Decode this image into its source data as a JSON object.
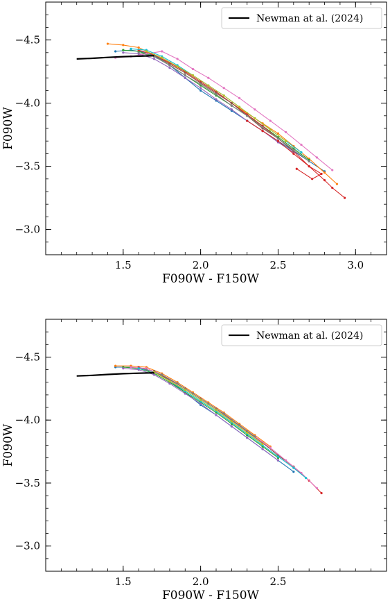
{
  "chart_data": [
    {
      "type": "line",
      "xlabel": "F090W - F150W",
      "ylabel": "F090W",
      "xlim": [
        1.0,
        3.2
      ],
      "ylim": [
        -2.8,
        -4.8
      ],
      "y_inverted": true,
      "xticks": [
        1.5,
        2.0,
        2.5,
        3.0
      ],
      "xtick_labels": [
        "1.5",
        "2.0",
        "2.5",
        "3.0"
      ],
      "yticks": [
        -4.5,
        -4.0,
        -3.5,
        -3.0
      ],
      "ytick_labels": [
        "-4.5",
        "-4.0",
        "-3.5",
        "-3.0"
      ],
      "legend": {
        "position": "top-right",
        "entries": [
          {
            "label": "Newman at al. (2024)",
            "color": "#000000"
          }
        ]
      },
      "reference_line": {
        "name": "Newman at al. (2024)",
        "color": "#000000",
        "x": [
          1.2,
          1.3,
          1.4,
          1.5,
          1.6,
          1.7
        ],
        "y": [
          -4.35,
          -4.355,
          -4.362,
          -4.368,
          -4.372,
          -4.375
        ]
      },
      "series": [
        {
          "color": "#1f77b4",
          "x": [
            1.45,
            1.55,
            1.65,
            1.72,
            1.8,
            1.9,
            2.0,
            2.1,
            2.2,
            2.3,
            2.4,
            2.5,
            2.6,
            2.7,
            2.8
          ],
          "y": [
            -4.41,
            -4.42,
            -4.4,
            -4.36,
            -4.3,
            -4.2,
            -4.1,
            -4.02,
            -3.94,
            -3.86,
            -3.78,
            -3.7,
            -3.62,
            -3.54,
            -3.46
          ]
        },
        {
          "color": "#ff7f0e",
          "x": [
            1.4,
            1.5,
            1.6,
            1.7,
            1.8,
            1.9,
            2.0,
            2.1,
            2.2,
            2.3,
            2.4,
            2.5,
            2.6,
            2.7,
            2.8,
            2.88
          ],
          "y": [
            -4.47,
            -4.46,
            -4.44,
            -4.38,
            -4.31,
            -4.24,
            -4.16,
            -4.08,
            -4.0,
            -3.92,
            -3.84,
            -3.76,
            -3.66,
            -3.56,
            -3.45,
            -3.36
          ]
        },
        {
          "color": "#2ca02c",
          "x": [
            1.5,
            1.6,
            1.7,
            1.8,
            1.9,
            2.0,
            2.1,
            2.2,
            2.3,
            2.4,
            2.5,
            2.6,
            2.7
          ],
          "y": [
            -4.42,
            -4.41,
            -4.37,
            -4.3,
            -4.22,
            -4.14,
            -4.06,
            -3.98,
            -3.9,
            -3.82,
            -3.73,
            -3.64,
            -3.55
          ]
        },
        {
          "color": "#d62728",
          "x": [
            1.6,
            1.7,
            1.8,
            1.9,
            2.0,
            2.1,
            2.2,
            2.3,
            2.4,
            2.5,
            2.6,
            2.7,
            2.8,
            2.85,
            2.93
          ],
          "y": [
            -4.42,
            -4.38,
            -4.32,
            -4.25,
            -4.17,
            -4.09,
            -4.0,
            -3.91,
            -3.82,
            -3.72,
            -3.62,
            -3.5,
            -3.39,
            -3.33,
            -3.25
          ]
        },
        {
          "color": "#9467bd",
          "x": [
            1.5,
            1.6,
            1.7,
            1.8,
            1.9,
            2.0,
            2.1,
            2.2,
            2.3,
            2.4,
            2.5,
            2.6
          ],
          "y": [
            -4.4,
            -4.39,
            -4.35,
            -4.28,
            -4.2,
            -4.12,
            -4.03,
            -3.95,
            -3.86,
            -3.78,
            -3.69,
            -3.61
          ]
        },
        {
          "color": "#8c564b",
          "x": [
            1.7,
            1.8,
            1.9,
            2.0,
            2.1,
            2.2,
            2.3,
            2.4,
            2.5,
            2.6
          ],
          "y": [
            -4.38,
            -4.31,
            -4.24,
            -4.16,
            -4.08,
            -4.0,
            -3.9,
            -3.8,
            -3.72,
            -3.62
          ]
        },
        {
          "color": "#e377c2",
          "x": [
            1.45,
            1.55,
            1.65,
            1.75,
            1.85,
            1.95,
            2.05,
            2.15,
            2.25,
            2.35,
            2.45,
            2.55,
            2.65,
            2.75,
            2.85
          ],
          "y": [
            -4.36,
            -4.37,
            -4.39,
            -4.41,
            -4.35,
            -4.27,
            -4.2,
            -4.12,
            -4.04,
            -3.95,
            -3.86,
            -3.77,
            -3.67,
            -3.57,
            -3.47
          ]
        },
        {
          "color": "#17becf",
          "x": [
            1.55,
            1.65,
            1.75,
            1.85,
            1.95,
            2.05,
            2.15,
            2.25,
            2.35,
            2.45,
            2.55,
            2.65
          ],
          "y": [
            -4.43,
            -4.42,
            -4.37,
            -4.3,
            -4.22,
            -4.14,
            -4.06,
            -3.97,
            -3.88,
            -3.79,
            -3.7,
            -3.61
          ]
        },
        {
          "color": "#7f7f7f",
          "x": [
            1.6,
            1.7,
            1.8,
            1.9,
            2.0,
            2.1,
            2.2,
            2.3,
            2.4,
            2.5,
            2.6,
            2.7
          ],
          "y": [
            -4.4,
            -4.37,
            -4.3,
            -4.22,
            -4.15,
            -4.07,
            -3.98,
            -3.9,
            -3.81,
            -3.72,
            -3.63,
            -3.54
          ]
        },
        {
          "color": "#bcbd22",
          "x": [
            1.65,
            1.75,
            1.85,
            1.95,
            2.05,
            2.15,
            2.25,
            2.35,
            2.45,
            2.55
          ],
          "y": [
            -4.41,
            -4.36,
            -4.29,
            -4.22,
            -4.14,
            -4.06,
            -3.97,
            -3.88,
            -3.79,
            -3.7
          ]
        },
        {
          "color": "#d62728",
          "x": [
            2.3,
            2.4,
            2.5,
            2.6,
            2.7,
            2.78,
            2.72,
            2.62
          ],
          "y": [
            -3.86,
            -3.78,
            -3.7,
            -3.6,
            -3.5,
            -3.44,
            -3.4,
            -3.48
          ]
        }
      ]
    },
    {
      "type": "line",
      "xlabel": "F090W - F150W",
      "ylabel": "F090W",
      "xlim": [
        1.0,
        3.2
      ],
      "ylim": [
        -2.8,
        -4.8
      ],
      "y_inverted": true,
      "xticks": [
        1.5,
        2.0,
        2.5
      ],
      "xtick_labels": [
        "1.5",
        "2.0",
        "2.5"
      ],
      "yticks": [
        -4.5,
        -4.0,
        -3.5,
        -3.0
      ],
      "ytick_labels": [
        "-4.5",
        "-4.0",
        "-3.5",
        "-3.0"
      ],
      "legend": {
        "position": "top-right",
        "entries": [
          {
            "label": "Newman at al. (2024)",
            "color": "#000000"
          }
        ]
      },
      "reference_line": {
        "name": "Newman at al. (2024)",
        "color": "#000000",
        "x": [
          1.2,
          1.3,
          1.4,
          1.5,
          1.6,
          1.7
        ],
        "y": [
          -4.35,
          -4.355,
          -4.362,
          -4.368,
          -4.372,
          -4.375
        ]
      },
      "series": [
        {
          "color": "#1f77b4",
          "x": [
            1.45,
            1.55,
            1.65,
            1.72,
            1.8,
            1.9,
            2.0,
            2.1,
            2.2,
            2.3,
            2.4,
            2.5,
            2.6
          ],
          "y": [
            -4.42,
            -4.42,
            -4.4,
            -4.37,
            -4.31,
            -4.22,
            -4.12,
            -4.04,
            -3.95,
            -3.86,
            -3.77,
            -3.68,
            -3.59
          ]
        },
        {
          "color": "#ff7f0e",
          "x": [
            1.45,
            1.55,
            1.65,
            1.75,
            1.85,
            1.95,
            2.05,
            2.15,
            2.25,
            2.35,
            2.45
          ],
          "y": [
            -4.43,
            -4.43,
            -4.42,
            -4.37,
            -4.3,
            -4.22,
            -4.14,
            -4.06,
            -3.97,
            -3.88,
            -3.79
          ]
        },
        {
          "color": "#2ca02c",
          "x": [
            1.5,
            1.6,
            1.7,
            1.8,
            1.9,
            2.0,
            2.1,
            2.2,
            2.3,
            2.4,
            2.5
          ],
          "y": [
            -4.42,
            -4.41,
            -4.37,
            -4.3,
            -4.22,
            -4.14,
            -4.06,
            -3.97,
            -3.88,
            -3.79,
            -3.7
          ]
        },
        {
          "color": "#d62728",
          "x": [
            1.6,
            1.7,
            1.8,
            1.9,
            2.0,
            2.1,
            2.2,
            2.3,
            2.4,
            2.5,
            2.6,
            2.7,
            2.78
          ],
          "y": [
            -4.42,
            -4.38,
            -4.32,
            -4.25,
            -4.17,
            -4.09,
            -4.0,
            -3.91,
            -3.82,
            -3.72,
            -3.63,
            -3.52,
            -3.42
          ]
        },
        {
          "color": "#9467bd",
          "x": [
            1.5,
            1.6,
            1.7,
            1.8,
            1.9,
            2.0,
            2.1,
            2.2,
            2.3,
            2.4,
            2.5
          ],
          "y": [
            -4.41,
            -4.4,
            -4.36,
            -4.29,
            -4.21,
            -4.13,
            -4.04,
            -3.95,
            -3.86,
            -3.77,
            -3.68
          ]
        },
        {
          "color": "#8c564b",
          "x": [
            1.7,
            1.8,
            1.9,
            2.0,
            2.1,
            2.2,
            2.3,
            2.4,
            2.5,
            2.6
          ],
          "y": [
            -4.39,
            -4.32,
            -4.25,
            -4.17,
            -4.09,
            -4.0,
            -3.91,
            -3.82,
            -3.72,
            -3.63
          ]
        },
        {
          "color": "#e377c2",
          "x": [
            1.55,
            1.65,
            1.75,
            1.85,
            1.95,
            2.05,
            2.15,
            2.25,
            2.35,
            2.45,
            2.55,
            2.65,
            2.75
          ],
          "y": [
            -4.42,
            -4.41,
            -4.36,
            -4.29,
            -4.21,
            -4.13,
            -4.05,
            -3.96,
            -3.87,
            -3.78,
            -3.68,
            -3.58,
            -3.46
          ]
        },
        {
          "color": "#17becf",
          "x": [
            1.6,
            1.7,
            1.8,
            1.9,
            2.0,
            2.1,
            2.2,
            2.3,
            2.4,
            2.5,
            2.6,
            2.68
          ],
          "y": [
            -4.41,
            -4.38,
            -4.31,
            -4.23,
            -4.15,
            -4.07,
            -3.98,
            -3.89,
            -3.8,
            -3.71,
            -3.62,
            -3.54
          ]
        },
        {
          "color": "#7f7f7f",
          "x": [
            1.65,
            1.75,
            1.85,
            1.95,
            2.05,
            2.15,
            2.25,
            2.35
          ],
          "y": [
            -4.4,
            -4.36,
            -4.29,
            -4.21,
            -4.13,
            -4.05,
            -3.96,
            -3.87
          ]
        },
        {
          "color": "#bcbd22",
          "x": [
            1.7,
            1.8,
            1.9,
            2.0,
            2.1,
            2.2,
            2.3,
            2.4
          ],
          "y": [
            -4.38,
            -4.31,
            -4.24,
            -4.16,
            -4.08,
            -3.99,
            -3.9,
            -3.81
          ]
        }
      ]
    }
  ]
}
